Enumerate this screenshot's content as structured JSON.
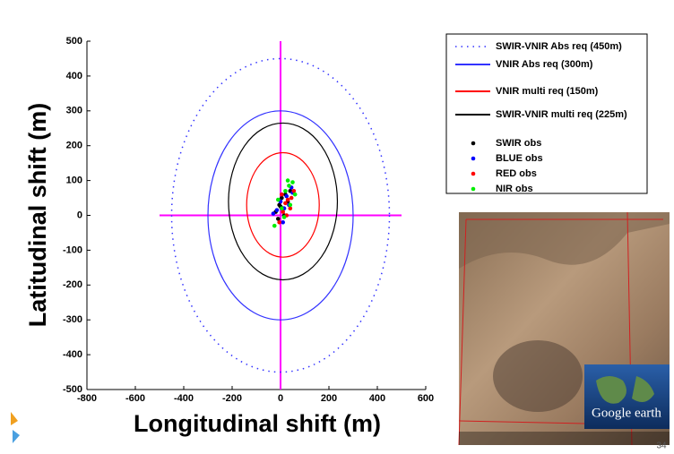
{
  "chart_data": {
    "type": "scatter",
    "x_label": "Longitudinal shift (m)",
    "y_label": "Latitudinal shift (m)",
    "xlim": [
      -800,
      600
    ],
    "ylim": [
      -500,
      500
    ],
    "xticks": [
      -800,
      -600,
      -400,
      -200,
      0,
      200,
      400,
      600
    ],
    "yticks": [
      -500,
      -400,
      -300,
      -200,
      -100,
      0,
      100,
      200,
      300,
      400,
      500
    ],
    "crosshair": {
      "color": "#ff00ff",
      "x": [
        -500,
        500
      ],
      "y": [
        -500,
        500
      ]
    },
    "circles": [
      {
        "name": "SWIR-VNIR Abs req (450m)",
        "color": "#3333ff",
        "radius": 450,
        "center": [
          0,
          0
        ],
        "dash": "dotted"
      },
      {
        "name": "VNIR Abs req (300m)",
        "color": "#3333ff",
        "radius": 300,
        "center": [
          0,
          0
        ],
        "dash": "solid"
      },
      {
        "name": "VNIR multi req (150m)",
        "color": "#ff0000",
        "radius": 150,
        "center": [
          10,
          30
        ],
        "dash": "solid"
      },
      {
        "name": "SWIR-VNIR multi req (225m)",
        "color": "#000000",
        "radius": 225,
        "center": [
          10,
          40
        ],
        "dash": "solid"
      }
    ],
    "series": [
      {
        "name": "SWIR obs",
        "color": "#000000",
        "x": [
          -20,
          -5,
          5,
          10,
          20,
          30,
          -10,
          15,
          40,
          0
        ],
        "y": [
          10,
          30,
          50,
          20,
          60,
          40,
          -10,
          0,
          70,
          25
        ]
      },
      {
        "name": "BLUE obs",
        "color": "#0000ff",
        "x": [
          -30,
          0,
          15,
          25,
          35,
          50,
          10,
          -15,
          45
        ],
        "y": [
          5,
          40,
          20,
          55,
          30,
          65,
          -20,
          15,
          80
        ]
      },
      {
        "name": "RED obs",
        "color": "#ff0000",
        "x": [
          -5,
          10,
          20,
          30,
          45,
          55,
          5,
          25,
          40
        ],
        "y": [
          -20,
          10,
          35,
          45,
          50,
          70,
          60,
          0,
          20
        ]
      },
      {
        "name": "NIR obs",
        "color": "#00ee00",
        "x": [
          -25,
          5,
          20,
          35,
          50,
          60,
          15,
          40,
          -10,
          30
        ],
        "y": [
          -30,
          20,
          70,
          85,
          95,
          60,
          -5,
          30,
          45,
          100
        ]
      }
    ]
  },
  "image_inset": {
    "logo": "Google earth"
  },
  "page_number": "34"
}
